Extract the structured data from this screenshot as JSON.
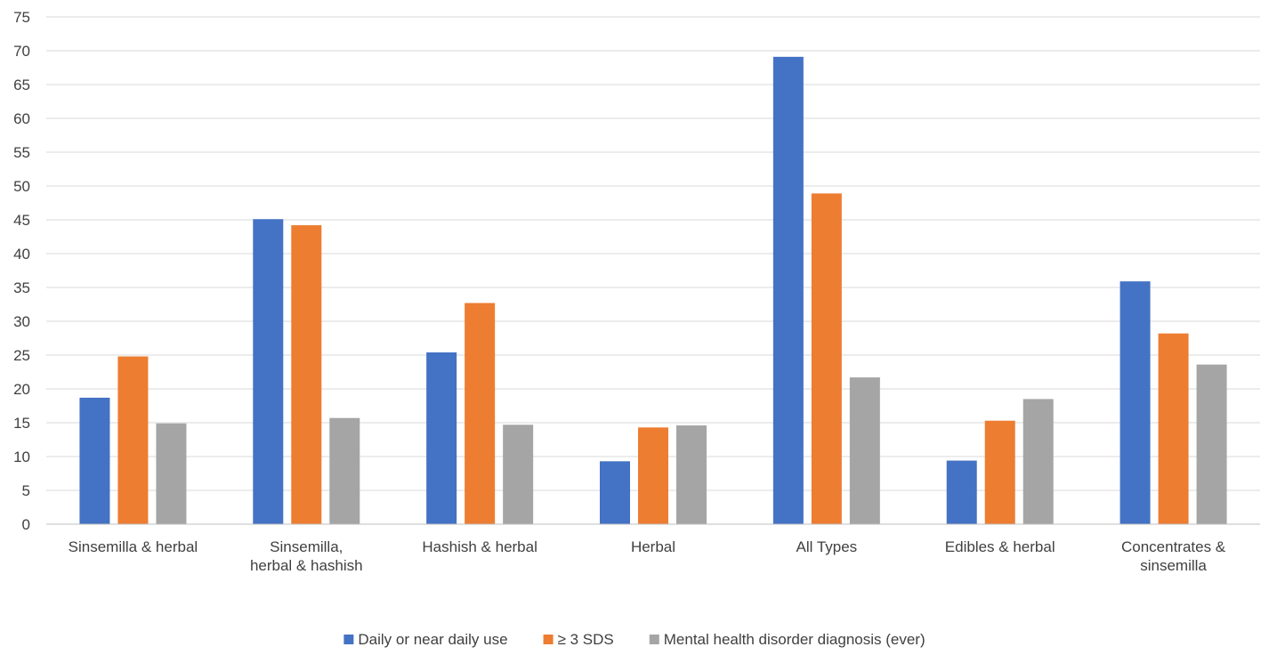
{
  "chart_data": {
    "type": "bar",
    "title": "",
    "xlabel": "",
    "ylabel": "",
    "ylim": [
      0,
      75
    ],
    "ytick_step": 5,
    "grid": true,
    "legend_position": "bottom",
    "categories": [
      [
        "Sinsemilla & herbal"
      ],
      [
        "Sinsemilla,",
        "herbal & hashish"
      ],
      [
        "Hashish & herbal"
      ],
      [
        "Herbal"
      ],
      [
        "All Types"
      ],
      [
        "Edibles & herbal"
      ],
      [
        "Concentrates &",
        "sinsemilla"
      ]
    ],
    "series": [
      {
        "name": "Daily or near daily use",
        "color": "#4472C4",
        "values": [
          18.7,
          45.1,
          25.4,
          9.3,
          69.1,
          9.4,
          35.9
        ]
      },
      {
        "name": "≥ 3 SDS",
        "color": "#ED7D31",
        "values": [
          24.8,
          44.2,
          32.7,
          14.3,
          48.9,
          15.3,
          28.2
        ]
      },
      {
        "name": "Mental health disorder diagnosis (ever)",
        "color": "#A5A5A5",
        "values": [
          14.9,
          15.7,
          14.7,
          14.6,
          21.7,
          18.5,
          23.6
        ]
      }
    ]
  }
}
